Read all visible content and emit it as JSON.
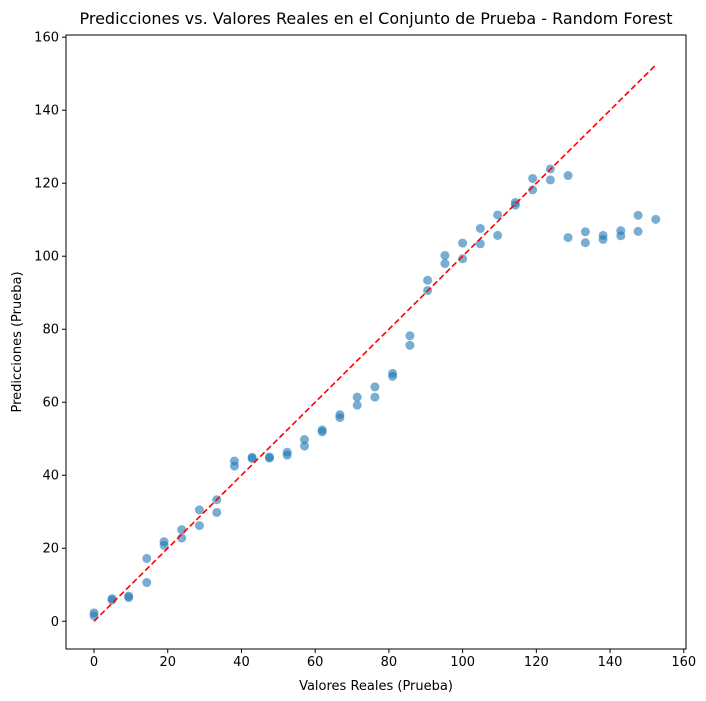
{
  "chart_data": {
    "type": "scatter",
    "title": "Predicciones vs. Valores Reales en el Conjunto de Prueba - Random Forest",
    "xlabel": "Valores Reales (Prueba)",
    "ylabel": "Predicciones (Prueba)",
    "xlim": [
      -7.6,
      160.6
    ],
    "ylim": [
      -7.6,
      160.6
    ],
    "xticks": [
      0,
      20,
      40,
      60,
      80,
      100,
      120,
      140,
      160
    ],
    "yticks": [
      0,
      20,
      40,
      60,
      80,
      100,
      120,
      140,
      160
    ],
    "grid": false,
    "series": [
      {
        "color": "#1f77b4",
        "alpha": 0.6,
        "points": [
          [
            0,
            1.5
          ],
          [
            0,
            2.3
          ],
          [
            4.9,
            5.8
          ],
          [
            4.9,
            6.2
          ],
          [
            9.4,
            6.5
          ],
          [
            9.4,
            6.9
          ],
          [
            14.3,
            10.6
          ],
          [
            14.3,
            17.2
          ],
          [
            19,
            20.8
          ],
          [
            19,
            21.8
          ],
          [
            23.8,
            22.8
          ],
          [
            23.8,
            25.1
          ],
          [
            28.6,
            26.2
          ],
          [
            28.6,
            30.5
          ],
          [
            33.3,
            29.8
          ],
          [
            33.3,
            33.3
          ],
          [
            38.1,
            42.5
          ],
          [
            38.1,
            43.9
          ],
          [
            42.9,
            44.6
          ],
          [
            42.9,
            44.9
          ],
          [
            47.6,
            44.7
          ],
          [
            47.6,
            45.0
          ],
          [
            52.4,
            45.5
          ],
          [
            52.4,
            46.3
          ],
          [
            57.1,
            48.0
          ],
          [
            57.1,
            49.8
          ],
          [
            61.9,
            51.9
          ],
          [
            61.9,
            52.4
          ],
          [
            66.7,
            55.8
          ],
          [
            66.7,
            56.6
          ],
          [
            71.4,
            59.2
          ],
          [
            71.4,
            61.4
          ],
          [
            76.2,
            61.4
          ],
          [
            76.2,
            64.2
          ],
          [
            81,
            67.1
          ],
          [
            81,
            67.9
          ],
          [
            85.7,
            75.6
          ],
          [
            85.7,
            78.2
          ],
          [
            90.5,
            90.6
          ],
          [
            90.5,
            93.4
          ],
          [
            95.2,
            98.0
          ],
          [
            95.2,
            100.2
          ],
          [
            100,
            99.3
          ],
          [
            100,
            103.6
          ],
          [
            104.8,
            103.4
          ],
          [
            104.8,
            107.6
          ],
          [
            109.5,
            105.7
          ],
          [
            109.5,
            111.3
          ],
          [
            114.3,
            114.0
          ],
          [
            114.3,
            114.7
          ],
          [
            119,
            118.2
          ],
          [
            119,
            121.3
          ],
          [
            123.8,
            120.9
          ],
          [
            123.8,
            123.9
          ],
          [
            128.6,
            105.1
          ],
          [
            128.6,
            122.1
          ],
          [
            133.3,
            103.7
          ],
          [
            133.3,
            106.7
          ],
          [
            138.1,
            104.6
          ],
          [
            138.1,
            105.7
          ],
          [
            142.9,
            105.6
          ],
          [
            142.9,
            107.0
          ],
          [
            147.6,
            106.8
          ],
          [
            147.6,
            111.2
          ],
          [
            152.4,
            110.1
          ]
        ]
      }
    ],
    "reference_line": {
      "from": [
        0,
        0
      ],
      "to": [
        152.4,
        152.4
      ],
      "color": "#ff0000",
      "style": "dashed"
    }
  }
}
